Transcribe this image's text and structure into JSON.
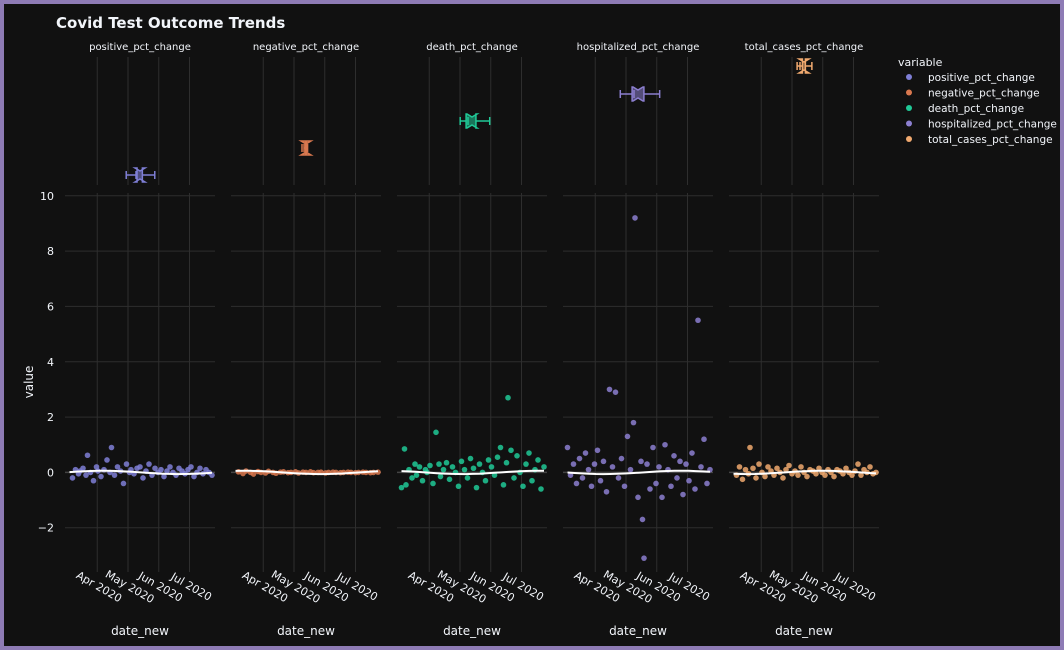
{
  "chart_data": {
    "type": "scatter",
    "title": "Covid Test Outcome Trends",
    "xlabel": "date_new",
    "ylabel": "value",
    "ylim": [
      -3.6,
      10.1
    ],
    "y_ticks": [
      "10",
      "8",
      "6",
      "4",
      "2",
      "0",
      "−2"
    ],
    "y_tick_values": [
      10,
      8,
      6,
      4,
      2,
      0,
      -2
    ],
    "x_ticks": [
      "Apr 2020",
      "May 2020",
      "Jun 2020",
      "Jul 2020"
    ],
    "legend": {
      "title": "variable",
      "position": "top-right"
    },
    "grid": true,
    "marginal_box": true,
    "trendline_color": "#ffffff",
    "series": [
      {
        "name": "positive_pct_change",
        "color": "#7f7fd6",
        "box": {
          "min": -0.7,
          "q1": -0.15,
          "median": 0.0,
          "q3": 0.12,
          "max": 0.75
        },
        "points": [
          [
            0.05,
            -0.2
          ],
          [
            0.07,
            0.1
          ],
          [
            0.09,
            -0.05
          ],
          [
            0.1,
            0.05
          ],
          [
            0.12,
            0.15
          ],
          [
            0.14,
            -0.1
          ],
          [
            0.15,
            0.62
          ],
          [
            0.17,
            0.0
          ],
          [
            0.19,
            -0.3
          ],
          [
            0.21,
            0.2
          ],
          [
            0.22,
            0.05
          ],
          [
            0.24,
            -0.15
          ],
          [
            0.26,
            0.1
          ],
          [
            0.28,
            0.45
          ],
          [
            0.3,
            0.0
          ],
          [
            0.31,
            0.9
          ],
          [
            0.33,
            -0.1
          ],
          [
            0.35,
            0.2
          ],
          [
            0.37,
            0.05
          ],
          [
            0.39,
            -0.4
          ],
          [
            0.41,
            0.3
          ],
          [
            0.43,
            0.0
          ],
          [
            0.44,
            0.1
          ],
          [
            0.46,
            -0.05
          ],
          [
            0.48,
            0.15
          ],
          [
            0.5,
            0.2
          ],
          [
            0.52,
            -0.2
          ],
          [
            0.54,
            0.05
          ],
          [
            0.56,
            0.3
          ],
          [
            0.58,
            -0.1
          ],
          [
            0.6,
            0.15
          ],
          [
            0.62,
            0.0
          ],
          [
            0.64,
            0.1
          ],
          [
            0.66,
            -0.15
          ],
          [
            0.68,
            0.05
          ],
          [
            0.7,
            0.2
          ],
          [
            0.72,
            0.0
          ],
          [
            0.74,
            -0.1
          ],
          [
            0.76,
            0.15
          ],
          [
            0.78,
            0.05
          ],
          [
            0.8,
            -0.05
          ],
          [
            0.82,
            0.1
          ],
          [
            0.84,
            0.2
          ],
          [
            0.86,
            -0.15
          ],
          [
            0.88,
            0.0
          ],
          [
            0.9,
            0.15
          ],
          [
            0.92,
            -0.05
          ],
          [
            0.94,
            0.1
          ],
          [
            0.96,
            0.0
          ],
          [
            0.98,
            -0.1
          ]
        ]
      },
      {
        "name": "negative_pct_change",
        "color": "#d9784f",
        "box": {
          "min": -0.1,
          "q1": -0.03,
          "median": 0.0,
          "q3": 0.02,
          "max": 0.08
        },
        "points": [
          [
            0.05,
            0.02
          ],
          [
            0.08,
            -0.04
          ],
          [
            0.1,
            0.05
          ],
          [
            0.13,
            0.0
          ],
          [
            0.15,
            -0.06
          ],
          [
            0.18,
            0.03
          ],
          [
            0.2,
            0.0
          ],
          [
            0.23,
            -0.02
          ],
          [
            0.25,
            0.04
          ],
          [
            0.28,
            0.0
          ],
          [
            0.3,
            -0.03
          ],
          [
            0.33,
            0.01
          ],
          [
            0.35,
            0.02
          ],
          [
            0.38,
            -0.01
          ],
          [
            0.4,
            0.0
          ],
          [
            0.43,
            0.02
          ],
          [
            0.45,
            -0.02
          ],
          [
            0.48,
            0.01
          ],
          [
            0.5,
            0.0
          ],
          [
            0.53,
            0.02
          ],
          [
            0.55,
            -0.01
          ],
          [
            0.58,
            0.0
          ],
          [
            0.6,
            0.01
          ],
          [
            0.63,
            -0.02
          ],
          [
            0.65,
            0.0
          ],
          [
            0.68,
            0.01
          ],
          [
            0.7,
            0.0
          ],
          [
            0.73,
            -0.01
          ],
          [
            0.75,
            0.0
          ],
          [
            0.78,
            0.01
          ],
          [
            0.8,
            0.0
          ],
          [
            0.83,
            -0.01
          ],
          [
            0.85,
            0.0
          ],
          [
            0.88,
            0.01
          ],
          [
            0.9,
            0.0
          ],
          [
            0.93,
            -0.01
          ],
          [
            0.95,
            0.0
          ],
          [
            0.98,
            0.01
          ]
        ]
      },
      {
        "name": "death_pct_change",
        "color": "#20c997",
        "box": {
          "min": -0.6,
          "q1": -0.3,
          "median": 0.0,
          "q3": 0.2,
          "max": 0.9
        },
        "points": [
          [
            0.03,
            -0.55
          ],
          [
            0.05,
            0.85
          ],
          [
            0.06,
            -0.45
          ],
          [
            0.08,
            0.1
          ],
          [
            0.1,
            -0.2
          ],
          [
            0.12,
            0.3
          ],
          [
            0.13,
            -0.1
          ],
          [
            0.15,
            0.2
          ],
          [
            0.17,
            -0.3
          ],
          [
            0.19,
            0.1
          ],
          [
            0.2,
            0.0
          ],
          [
            0.22,
            0.25
          ],
          [
            0.24,
            -0.4
          ],
          [
            0.26,
            1.45
          ],
          [
            0.28,
            0.3
          ],
          [
            0.29,
            -0.15
          ],
          [
            0.31,
            0.1
          ],
          [
            0.33,
            0.35
          ],
          [
            0.35,
            -0.25
          ],
          [
            0.37,
            0.2
          ],
          [
            0.39,
            0.0
          ],
          [
            0.41,
            -0.5
          ],
          [
            0.43,
            0.4
          ],
          [
            0.45,
            0.1
          ],
          [
            0.47,
            -0.2
          ],
          [
            0.49,
            0.5
          ],
          [
            0.51,
            0.15
          ],
          [
            0.53,
            -0.55
          ],
          [
            0.55,
            0.3
          ],
          [
            0.57,
            0.0
          ],
          [
            0.59,
            -0.3
          ],
          [
            0.61,
            0.45
          ],
          [
            0.63,
            0.2
          ],
          [
            0.65,
            -0.1
          ],
          [
            0.67,
            0.55
          ],
          [
            0.69,
            0.9
          ],
          [
            0.71,
            -0.45
          ],
          [
            0.73,
            0.35
          ],
          [
            0.74,
            2.7
          ],
          [
            0.76,
            0.8
          ],
          [
            0.78,
            -0.2
          ],
          [
            0.8,
            0.6
          ],
          [
            0.82,
            0.0
          ],
          [
            0.84,
            -0.5
          ],
          [
            0.86,
            0.3
          ],
          [
            0.88,
            0.7
          ],
          [
            0.9,
            -0.3
          ],
          [
            0.92,
            0.1
          ],
          [
            0.94,
            0.45
          ],
          [
            0.96,
            -0.6
          ],
          [
            0.98,
            0.2
          ]
        ]
      },
      {
        "name": "hospitalized_pct_change",
        "color": "#8c7fd0",
        "box": {
          "min": -0.9,
          "q1": -0.3,
          "median": 0.0,
          "q3": 0.3,
          "max": 1.1
        },
        "points": [
          [
            0.03,
            0.9
          ],
          [
            0.05,
            -0.1
          ],
          [
            0.07,
            0.3
          ],
          [
            0.09,
            -0.4
          ],
          [
            0.11,
            0.5
          ],
          [
            0.13,
            -0.2
          ],
          [
            0.15,
            0.7
          ],
          [
            0.17,
            0.1
          ],
          [
            0.19,
            -0.5
          ],
          [
            0.21,
            0.3
          ],
          [
            0.23,
            0.8
          ],
          [
            0.25,
            -0.3
          ],
          [
            0.27,
            0.4
          ],
          [
            0.29,
            -0.7
          ],
          [
            0.31,
            3.0
          ],
          [
            0.33,
            0.2
          ],
          [
            0.35,
            2.9
          ],
          [
            0.37,
            -0.2
          ],
          [
            0.39,
            0.5
          ],
          [
            0.41,
            -0.5
          ],
          [
            0.43,
            1.3
          ],
          [
            0.45,
            0.1
          ],
          [
            0.47,
            1.8
          ],
          [
            0.48,
            9.2
          ],
          [
            0.5,
            -0.9
          ],
          [
            0.52,
            0.4
          ],
          [
            0.53,
            -1.7
          ],
          [
            0.54,
            -3.1
          ],
          [
            0.56,
            0.3
          ],
          [
            0.58,
            -0.6
          ],
          [
            0.6,
            0.9
          ],
          [
            0.62,
            -0.4
          ],
          [
            0.64,
            0.2
          ],
          [
            0.66,
            -0.9
          ],
          [
            0.68,
            1.0
          ],
          [
            0.7,
            0.1
          ],
          [
            0.72,
            -0.5
          ],
          [
            0.74,
            0.6
          ],
          [
            0.76,
            -0.2
          ],
          [
            0.78,
            0.4
          ],
          [
            0.8,
            -0.8
          ],
          [
            0.82,
            0.3
          ],
          [
            0.84,
            -0.3
          ],
          [
            0.86,
            0.7
          ],
          [
            0.88,
            -0.6
          ],
          [
            0.9,
            5.5
          ],
          [
            0.92,
            0.2
          ],
          [
            0.94,
            1.2
          ],
          [
            0.96,
            -0.4
          ],
          [
            0.98,
            0.1
          ]
        ]
      },
      {
        "name": "total_cases_pct_change",
        "color": "#f0a96f",
        "box": {
          "min": -0.35,
          "q1": -0.08,
          "median": 0.0,
          "q3": 0.07,
          "max": 0.4
        },
        "points": [
          [
            0.05,
            -0.1
          ],
          [
            0.07,
            0.2
          ],
          [
            0.09,
            -0.25
          ],
          [
            0.11,
            0.1
          ],
          [
            0.13,
            -0.05
          ],
          [
            0.14,
            0.9
          ],
          [
            0.16,
            0.15
          ],
          [
            0.18,
            -0.2
          ],
          [
            0.2,
            0.3
          ],
          [
            0.22,
            0.0
          ],
          [
            0.24,
            -0.15
          ],
          [
            0.26,
            0.2
          ],
          [
            0.28,
            0.05
          ],
          [
            0.3,
            -0.1
          ],
          [
            0.32,
            0.15
          ],
          [
            0.34,
            0.0
          ],
          [
            0.36,
            -0.2
          ],
          [
            0.38,
            0.1
          ],
          [
            0.4,
            0.25
          ],
          [
            0.42,
            -0.05
          ],
          [
            0.44,
            0.05
          ],
          [
            0.46,
            -0.1
          ],
          [
            0.48,
            0.2
          ],
          [
            0.5,
            0.0
          ],
          [
            0.52,
            -0.15
          ],
          [
            0.54,
            0.1
          ],
          [
            0.56,
            0.05
          ],
          [
            0.58,
            -0.05
          ],
          [
            0.6,
            0.15
          ],
          [
            0.62,
            0.0
          ],
          [
            0.64,
            -0.1
          ],
          [
            0.66,
            0.1
          ],
          [
            0.68,
            0.0
          ],
          [
            0.7,
            -0.15
          ],
          [
            0.72,
            0.1
          ],
          [
            0.74,
            0.05
          ],
          [
            0.76,
            -0.05
          ],
          [
            0.78,
            0.15
          ],
          [
            0.8,
            0.0
          ],
          [
            0.82,
            -0.1
          ],
          [
            0.84,
            0.05
          ],
          [
            0.86,
            0.3
          ],
          [
            0.88,
            -0.1
          ],
          [
            0.9,
            0.1
          ],
          [
            0.92,
            0.0
          ],
          [
            0.94,
            0.2
          ],
          [
            0.96,
            -0.05
          ],
          [
            0.98,
            0.0
          ]
        ]
      }
    ]
  }
}
